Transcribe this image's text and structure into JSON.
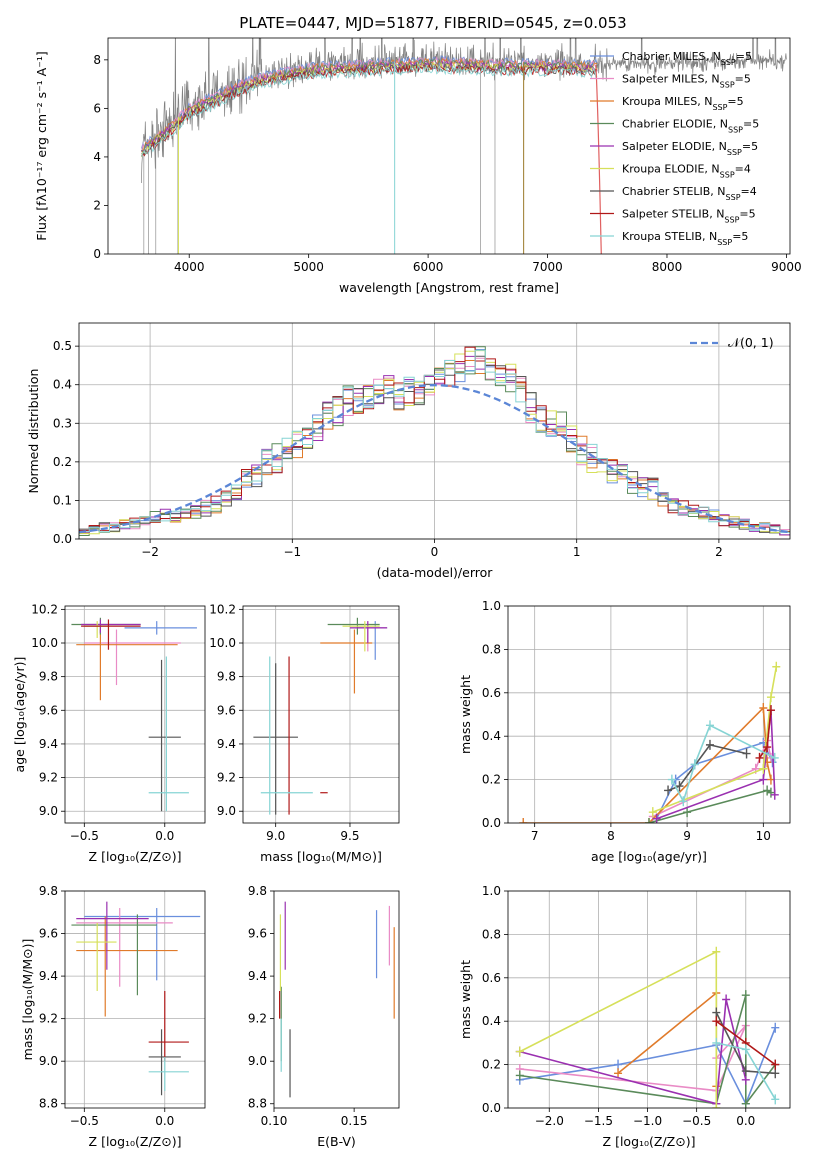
{
  "title": "PLATE=0447, MJD=51877, FIBERID=0545, z=0.053",
  "colors": [
    "#6a8fdd",
    "#e98bc6",
    "#e07b2b",
    "#5a8a5a",
    "#9a30b0",
    "#d6e05a",
    "#555555",
    "#b01818",
    "#86d4d4"
  ],
  "chart_data": [
    {
      "id": "spectrum",
      "type": "line",
      "xlabel": "wavelength [Angstrom, rest frame]",
      "ylabel": "Flux [fλ10⁻¹⁷ erg cm⁻² s⁻¹ A⁻¹]",
      "xlim": [
        3320,
        9030
      ],
      "ylim": [
        0,
        8.9
      ],
      "xticks": [
        4000,
        5000,
        6000,
        7000,
        8000,
        9000
      ],
      "yticks": [
        0,
        2,
        4,
        6,
        8
      ],
      "grid": false,
      "legend_position": "top-right",
      "legend": [
        {
          "label": "Chabrier MILES, N",
          "n": "5"
        },
        {
          "label": "Salpeter MILES, N",
          "n": "5"
        },
        {
          "label": "Kroupa MILES, N",
          "n": "5"
        },
        {
          "label": "Chabrier ELODIE, N",
          "n": "5"
        },
        {
          "label": "Salpeter ELODIE, N",
          "n": "5"
        },
        {
          "label": "Kroupa ELODIE, N",
          "n": "4"
        },
        {
          "label": "Chabrier STELIB, N",
          "n": "4"
        },
        {
          "label": "Salpeter STELIB, N",
          "n": "5"
        },
        {
          "label": "Kroupa STELIB, N",
          "n": "5"
        }
      ],
      "data_range": [
        3600,
        9000
      ],
      "continuum": [
        [
          3600,
          4.4
        ],
        [
          3700,
          4.8
        ],
        [
          3800,
          5.2
        ],
        [
          3900,
          5.6
        ],
        [
          4000,
          6.1
        ],
        [
          4200,
          6.5
        ],
        [
          4400,
          7.0
        ],
        [
          4600,
          7.35
        ],
        [
          4800,
          7.55
        ],
        [
          5000,
          7.75
        ],
        [
          5200,
          7.8
        ],
        [
          5400,
          7.85
        ],
        [
          5600,
          7.9
        ],
        [
          5800,
          7.95
        ],
        [
          6000,
          8.0
        ],
        [
          6300,
          7.95
        ],
        [
          6600,
          7.9
        ],
        [
          7000,
          7.9
        ],
        [
          7400,
          7.85
        ],
        [
          8000,
          7.85
        ],
        [
          8500,
          7.95
        ],
        [
          9000,
          8.0
        ]
      ],
      "model_extent": [
        3600,
        7420
      ]
    },
    {
      "id": "residuals",
      "type": "histogram",
      "xlabel": "(data-model)/error",
      "ylabel": "Normed distribution",
      "xlim": [
        -2.5,
        2.5
      ],
      "ylim": [
        0,
        0.56
      ],
      "xticks": [
        -2,
        -1,
        0,
        1,
        2
      ],
      "yticks": [
        0.0,
        0.1,
        0.2,
        0.3,
        0.4,
        0.5
      ],
      "grid": true,
      "bin_width": 0.1,
      "legend": "𝒩(0, 1)",
      "legend_position": "top-right",
      "envelope": [
        0.02,
        0.025,
        0.03,
        0.03,
        0.04,
        0.04,
        0.05,
        0.055,
        0.06,
        0.06,
        0.07,
        0.07,
        0.08,
        0.09,
        0.11,
        0.12,
        0.15,
        0.16,
        0.2,
        0.21,
        0.23,
        0.24,
        0.26,
        0.29,
        0.32,
        0.33,
        0.36,
        0.36,
        0.37,
        0.38,
        0.39,
        0.37,
        0.38,
        0.38,
        0.4,
        0.41,
        0.43,
        0.44,
        0.46,
        0.46,
        0.45,
        0.43,
        0.42,
        0.39,
        0.34,
        0.31,
        0.3,
        0.29,
        0.26,
        0.23,
        0.21,
        0.2,
        0.18,
        0.16,
        0.15,
        0.14,
        0.13,
        0.11,
        0.09,
        0.08,
        0.07,
        0.065,
        0.06,
        0.05,
        0.045,
        0.04,
        0.03,
        0.03,
        0.025,
        0.02
      ]
    },
    {
      "id": "age-vs-z",
      "type": "errorbar",
      "xlabel": "Z [log₁₀(Z/Z⊙)]",
      "ylabel": "age  [log₁₀(age/yr)]",
      "xlim": [
        -0.62,
        0.25
      ],
      "ylim": [
        8.93,
        10.22
      ],
      "xticks": [
        -0.5,
        0.0
      ],
      "yticks": [
        9.0,
        9.2,
        9.4,
        9.6,
        9.8,
        10.0,
        10.2
      ],
      "grid": true,
      "points": [
        {
          "c": 0,
          "x": -0.05,
          "y": 10.09,
          "xe": [
            -0.25,
            0.2
          ],
          "ye": [
            10.05,
            10.13
          ]
        },
        {
          "c": 1,
          "x": -0.3,
          "y": 10.0,
          "xe": [
            -0.5,
            0.1
          ],
          "ye": [
            9.75,
            10.08
          ]
        },
        {
          "c": 2,
          "x": -0.4,
          "y": 9.99,
          "xe": [
            -0.55,
            0.08
          ],
          "ye": [
            9.66,
            10.08
          ]
        },
        {
          "c": 3,
          "x": -0.4,
          "y": 10.11,
          "xe": [
            -0.58,
            -0.15
          ],
          "ye": [
            10.05,
            10.15
          ]
        },
        {
          "c": 4,
          "x": -0.4,
          "y": 10.11,
          "xe": [
            -0.52,
            -0.15
          ],
          "ye": [
            10.06,
            10.14
          ]
        },
        {
          "c": 5,
          "x": -0.42,
          "y": 10.1,
          "xe": [
            -0.5,
            -0.35
          ],
          "ye": [
            10.03,
            10.13
          ]
        },
        {
          "c": 6,
          "x": -0.02,
          "y": 9.44,
          "xe": [
            -0.1,
            0.1
          ],
          "ye": [
            9.0,
            9.9
          ]
        },
        {
          "c": 7,
          "x": -0.35,
          "y": 10.1,
          "xe": [
            -0.52,
            -0.15
          ],
          "ye": [
            9.96,
            10.14
          ]
        },
        {
          "c": 8,
          "x": 0.01,
          "y": 9.11,
          "xe": [
            -0.1,
            0.15
          ],
          "ye": [
            9.0,
            9.92
          ]
        }
      ]
    },
    {
      "id": "age-vs-mass",
      "type": "errorbar",
      "xlabel": "mass [log₁₀(M/M⊙)]",
      "ylabel": "",
      "xlim": [
        8.78,
        9.83
      ],
      "ylim": [
        8.93,
        10.22
      ],
      "xticks": [
        9.0,
        9.5
      ],
      "yticks": [
        9.0,
        9.2,
        9.4,
        9.6,
        9.8,
        10.0,
        10.2
      ],
      "grid": true,
      "points": [
        {
          "c": 0,
          "x": 9.67,
          "y": 10.09,
          "xe": [
            9.55,
            9.75
          ],
          "ye": [
            9.9,
            10.13
          ]
        },
        {
          "c": 1,
          "x": 9.62,
          "y": 10.09,
          "xe": [
            9.5,
            9.75
          ],
          "ye": [
            9.95,
            10.13
          ]
        },
        {
          "c": 2,
          "x": 9.53,
          "y": 10.0,
          "xe": [
            9.3,
            9.65
          ],
          "ye": [
            9.7,
            10.08
          ]
        },
        {
          "c": 3,
          "x": 9.55,
          "y": 10.11,
          "xe": [
            9.35,
            9.7
          ],
          "ye": [
            10.05,
            10.15
          ]
        },
        {
          "c": 4,
          "x": 9.62,
          "y": 10.09,
          "xe": [
            9.5,
            9.75
          ],
          "ye": [
            10.0,
            10.13
          ]
        },
        {
          "c": 5,
          "x": 9.6,
          "y": 10.1,
          "xe": [
            9.45,
            9.7
          ],
          "ye": [
            9.95,
            10.13
          ]
        },
        {
          "c": 6,
          "x": 9.0,
          "y": 9.44,
          "xe": [
            8.85,
            9.15
          ],
          "ye": [
            8.98,
            9.88
          ]
        },
        {
          "c": 7,
          "x": 9.09,
          "y": 9.11,
          "xe": [
            9.3,
            9.35
          ],
          "ye": [
            8.98,
            9.92
          ]
        },
        {
          "c": 8,
          "x": 8.96,
          "y": 9.11,
          "xe": [
            8.9,
            9.25
          ],
          "ye": [
            8.98,
            9.92
          ]
        }
      ]
    },
    {
      "id": "massweight-vs-age",
      "type": "line",
      "xlabel": "age  [log₁₀(age/yr)]",
      "ylabel": "mass weight",
      "xlim": [
        6.65,
        10.35
      ],
      "ylim": [
        0,
        1.0
      ],
      "xticks": [
        7,
        8,
        9,
        10
      ],
      "yticks": [
        0.0,
        0.2,
        0.4,
        0.6,
        0.8,
        1.0
      ],
      "grid": true,
      "series": [
        {
          "c": 0,
          "x": [
            8.6,
            8.85,
            9.1,
            10.0,
            10.12
          ],
          "y": [
            0.02,
            0.2,
            0.27,
            0.37,
            0.28
          ]
        },
        {
          "c": 1,
          "x": [
            8.55,
            9.9,
            10.05,
            10.1
          ],
          "y": [
            0.03,
            0.25,
            0.38,
            0.3
          ]
        },
        {
          "c": 2,
          "x": [
            6.85,
            8.5,
            10.0,
            10.05,
            10.1
          ],
          "y": [
            0.0,
            0.0,
            0.53,
            0.28,
            0.2
          ]
        },
        {
          "c": 3,
          "x": [
            8.5,
            9.0,
            10.05,
            10.1
          ],
          "y": [
            0.0,
            0.05,
            0.15,
            0.14
          ]
        },
        {
          "c": 4,
          "x": [
            8.6,
            10.0,
            10.1,
            10.15
          ],
          "y": [
            0.02,
            0.2,
            0.52,
            0.13
          ]
        },
        {
          "c": 5,
          "x": [
            8.55,
            10.0,
            10.1,
            10.17
          ],
          "y": [
            0.05,
            0.25,
            0.58,
            0.72
          ]
        },
        {
          "c": 6,
          "x": [
            8.75,
            8.9,
            9.3,
            9.78
          ],
          "y": [
            0.15,
            0.17,
            0.36,
            0.32
          ]
        },
        {
          "c": 7,
          "x": [
            9.95,
            10.05,
            10.1
          ],
          "y": [
            0.3,
            0.35,
            0.52
          ]
        },
        {
          "c": 8,
          "x": [
            8.8,
            8.95,
            9.1,
            9.3,
            10.15
          ],
          "y": [
            0.2,
            0.1,
            0.27,
            0.45,
            0.3
          ]
        }
      ]
    },
    {
      "id": "mass-vs-z",
      "type": "errorbar",
      "xlabel": "Z [log₁₀(Z/Z⊙)]",
      "ylabel": "mass [log₁₀(M/M⊙)]",
      "xlim": [
        -0.62,
        0.25
      ],
      "ylim": [
        8.78,
        9.8
      ],
      "xticks": [
        -0.5,
        0.0
      ],
      "yticks": [
        8.8,
        9.0,
        9.2,
        9.4,
        9.6,
        9.8
      ],
      "grid": true,
      "points": [
        {
          "c": 0,
          "x": -0.05,
          "y": 9.68,
          "xe": [
            -0.5,
            0.22
          ],
          "ye": [
            9.38,
            9.72
          ]
        },
        {
          "c": 1,
          "x": -0.28,
          "y": 9.65,
          "xe": [
            -0.55,
            0.05
          ],
          "ye": [
            9.35,
            9.72
          ]
        },
        {
          "c": 2,
          "x": -0.37,
          "y": 9.52,
          "xe": [
            -0.55,
            0.08
          ],
          "ye": [
            9.21,
            9.68
          ]
        },
        {
          "c": 3,
          "x": -0.17,
          "y": 9.64,
          "xe": [
            -0.58,
            -0.05
          ],
          "ye": [
            9.31,
            9.69
          ]
        },
        {
          "c": 4,
          "x": -0.36,
          "y": 9.67,
          "xe": [
            -0.55,
            -0.1
          ],
          "ye": [
            9.43,
            9.75
          ]
        },
        {
          "c": 5,
          "x": -0.42,
          "y": 9.56,
          "xe": [
            -0.55,
            -0.3
          ],
          "ye": [
            9.33,
            9.65
          ]
        },
        {
          "c": 6,
          "x": -0.02,
          "y": 9.02,
          "xe": [
            -0.1,
            0.1
          ],
          "ye": [
            8.84,
            9.15
          ]
        },
        {
          "c": 7,
          "x": 0.0,
          "y": 9.09,
          "xe": [
            -0.1,
            0.15
          ],
          "ye": [
            9.0,
            9.33
          ]
        },
        {
          "c": 8,
          "x": 0.0,
          "y": 8.95,
          "xe": [
            -0.1,
            0.15
          ],
          "ye": [
            8.86,
            9.02
          ]
        }
      ]
    },
    {
      "id": "mass-vs-ebv",
      "type": "errorbar",
      "xlabel": "E(B-V)",
      "ylabel": "",
      "xlim": [
        0.1,
        0.178
      ],
      "ylim": [
        8.78,
        9.8
      ],
      "xticks": [
        0.1,
        0.15
      ],
      "xtick_labels": [
        "0.10",
        "0.15"
      ],
      "yticks": [
        8.8,
        9.0,
        9.2,
        9.4,
        9.6,
        9.8
      ],
      "grid": false,
      "points": [
        {
          "c": 0,
          "x": 0.164,
          "y": 9.55,
          "ye": [
            9.39,
            9.71
          ]
        },
        {
          "c": 1,
          "x": 0.172,
          "y": 9.59,
          "ye": [
            9.45,
            9.73
          ]
        },
        {
          "c": 2,
          "x": 0.175,
          "y": 9.42,
          "ye": [
            9.2,
            9.63
          ]
        },
        {
          "c": 3,
          "x": 0.1045,
          "y": 9.2,
          "ye": [
            9.0,
            9.35
          ]
        },
        {
          "c": 4,
          "x": 0.107,
          "y": 9.59,
          "ye": [
            9.43,
            9.75
          ]
        },
        {
          "c": 5,
          "x": 0.104,
          "y": 9.55,
          "ye": [
            9.33,
            9.69
          ]
        },
        {
          "c": 6,
          "x": 0.11,
          "y": 9.0,
          "ye": [
            8.83,
            9.15
          ]
        },
        {
          "c": 7,
          "x": 0.1035,
          "y": 9.28,
          "ye": [
            9.2,
            9.33
          ]
        },
        {
          "c": 8,
          "x": 0.1045,
          "y": 9.1,
          "ye": [
            8.95,
            9.2
          ]
        }
      ]
    },
    {
      "id": "massweight-vs-z",
      "type": "line",
      "xlabel": "Z [log₁₀(Z/Z⊙)]",
      "ylabel": "mass weight",
      "xlim": [
        -2.42,
        0.45
      ],
      "ylim": [
        0,
        1.0
      ],
      "xticks": [
        -2.0,
        -1.5,
        -1.0,
        -0.5,
        0.0
      ],
      "yticks": [
        0.0,
        0.2,
        0.4,
        0.6,
        0.8,
        1.0
      ],
      "grid": true,
      "series": [
        {
          "c": 0,
          "x": [
            -2.3,
            -1.3,
            -0.3,
            0.0,
            0.3
          ],
          "y": [
            0.13,
            0.2,
            0.29,
            0.02,
            0.37
          ]
        },
        {
          "c": 1,
          "x": [
            -2.3,
            -0.3,
            0.0,
            -0.3
          ],
          "y": [
            0.18,
            0.08,
            0.38,
            0.23
          ]
        },
        {
          "c": 2,
          "x": [
            -1.3,
            -0.3,
            -0.3
          ],
          "y": [
            0.16,
            0.53,
            0.1
          ]
        },
        {
          "c": 3,
          "x": [
            -2.3,
            -0.3,
            0.0,
            0.0,
            0.3
          ],
          "y": [
            0.15,
            0.02,
            0.52,
            0.02,
            0.2
          ]
        },
        {
          "c": 4,
          "x": [
            -2.3,
            -0.3,
            -0.2,
            0.0
          ],
          "y": [
            0.26,
            0.02,
            0.5,
            0.13
          ]
        },
        {
          "c": 5,
          "x": [
            -2.3,
            -0.3,
            -0.3
          ],
          "y": [
            0.26,
            0.72,
            0.0
          ]
        },
        {
          "c": 6,
          "x": [
            -0.3,
            0.0,
            0.3
          ],
          "y": [
            0.44,
            0.17,
            0.16
          ]
        },
        {
          "c": 7,
          "x": [
            -0.3,
            0.0,
            0.3
          ],
          "y": [
            0.4,
            0.3,
            0.2
          ]
        },
        {
          "c": 8,
          "x": [
            -0.3,
            0.0,
            0.3
          ],
          "y": [
            0.3,
            0.27,
            0.04
          ]
        }
      ]
    }
  ]
}
